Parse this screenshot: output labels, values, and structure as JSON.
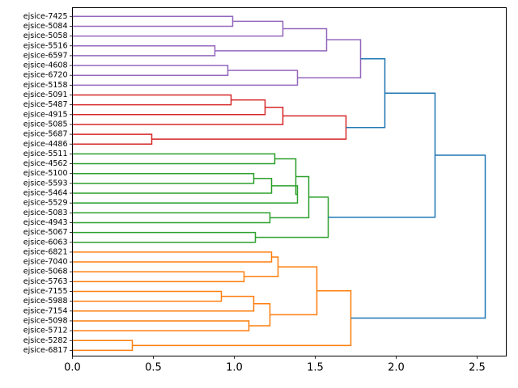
{
  "chart_data": {
    "type": "dendrogram",
    "orientation": "right",
    "title": "",
    "xlabel": "",
    "ylabel": "",
    "xlim": [
      0,
      2.68
    ],
    "xticks": [
      0.0,
      0.5,
      1.0,
      1.5,
      2.0,
      2.5
    ],
    "xtick_labels": [
      "0.0",
      "0.5",
      "1.0",
      "1.5",
      "2.0",
      "2.5"
    ],
    "colors": {
      "C0": "#1f77b4",
      "C1": "#ff7f0e",
      "C2": "#2ca02c",
      "C3": "#d62728",
      "C4": "#9467bd"
    },
    "leaves": [
      "ejsice-7425",
      "ejsice-5084",
      "ejsice-5058",
      "ejsice-5516",
      "ejsice-6597",
      "ejsice-4608",
      "ejsice-6720",
      "ejsice-5158",
      "ejsice-5091",
      "ejsice-5487",
      "ejsice-4915",
      "ejsice-5085",
      "ejsice-5687",
      "ejsice-4486",
      "ejsice-5511",
      "ejsice-4562",
      "ejsice-5100",
      "ejsice-5593",
      "ejsice-5464",
      "ejsice-5529",
      "ejsice-5083",
      "ejsice-4943",
      "ejsice-5067",
      "ejsice-6063",
      "ejsice-6821",
      "ejsice-7040",
      "ejsice-5068",
      "ejsice-5763",
      "ejsice-7155",
      "ejsice-5988",
      "ejsice-7154",
      "ejsice-5098",
      "ejsice-5712",
      "ejsice-5282",
      "ejsice-6817"
    ],
    "merges": [
      {
        "id": "M1",
        "a": "L0",
        "b": "L1",
        "height": 0.99,
        "color": "C4"
      },
      {
        "id": "M2",
        "a": "M1",
        "b": "L2",
        "height": 1.3,
        "color": "C4"
      },
      {
        "id": "M3",
        "a": "L3",
        "b": "L4",
        "height": 0.88,
        "color": "C4"
      },
      {
        "id": "M4",
        "a": "M2",
        "b": "M3",
        "height": 1.57,
        "color": "C4"
      },
      {
        "id": "M5",
        "a": "L5",
        "b": "L6",
        "height": 0.96,
        "color": "C4"
      },
      {
        "id": "M6",
        "a": "M5",
        "b": "L7",
        "height": 1.39,
        "color": "C4"
      },
      {
        "id": "M7",
        "a": "M4",
        "b": "M6",
        "height": 1.78,
        "color": "C4"
      },
      {
        "id": "M8",
        "a": "L8",
        "b": "L9",
        "height": 0.98,
        "color": "C3"
      },
      {
        "id": "M9",
        "a": "M8",
        "b": "L10",
        "height": 1.19,
        "color": "C3"
      },
      {
        "id": "M10",
        "a": "M9",
        "b": "L11",
        "height": 1.3,
        "color": "C3"
      },
      {
        "id": "M11",
        "a": "L12",
        "b": "L13",
        "height": 0.49,
        "color": "C3"
      },
      {
        "id": "M12",
        "a": "M10",
        "b": "M11",
        "height": 1.69,
        "color": "C3"
      },
      {
        "id": "M13",
        "a": "M7",
        "b": "M12",
        "height": 1.93,
        "color": "C0"
      },
      {
        "id": "M14",
        "a": "L14",
        "b": "L15",
        "height": 1.25,
        "color": "C2"
      },
      {
        "id": "M15",
        "a": "L16",
        "b": "L17",
        "height": 1.12,
        "color": "C2"
      },
      {
        "id": "M16",
        "a": "M15",
        "b": "L18",
        "height": 1.23,
        "color": "C2"
      },
      {
        "id": "M17",
        "a": "M16",
        "b": "L19",
        "height": 1.39,
        "color": "C2"
      },
      {
        "id": "M18",
        "a": "M14",
        "b": "M17",
        "height": 1.38,
        "color": "C2"
      },
      {
        "id": "M19",
        "a": "L20",
        "b": "L21",
        "height": 1.22,
        "color": "C2"
      },
      {
        "id": "M20",
        "a": "M18",
        "b": "M19",
        "height": 1.46,
        "color": "C2"
      },
      {
        "id": "M21",
        "a": "L22",
        "b": "L23",
        "height": 1.13,
        "color": "C2"
      },
      {
        "id": "M22",
        "a": "M20",
        "b": "M21",
        "height": 1.58,
        "color": "C2"
      },
      {
        "id": "M23",
        "a": "M13",
        "b": "M22",
        "height": 2.24,
        "color": "C0"
      },
      {
        "id": "M24",
        "a": "L24",
        "b": "L25",
        "height": 1.23,
        "color": "C1"
      },
      {
        "id": "M25",
        "a": "L26",
        "b": "L27",
        "height": 1.06,
        "color": "C1"
      },
      {
        "id": "M26",
        "a": "M24",
        "b": "M25",
        "height": 1.27,
        "color": "C1"
      },
      {
        "id": "M27",
        "a": "L28",
        "b": "L29",
        "height": 0.92,
        "color": "C1"
      },
      {
        "id": "M28",
        "a": "M27",
        "b": "L30",
        "height": 1.12,
        "color": "C1"
      },
      {
        "id": "M29",
        "a": "L31",
        "b": "L32",
        "height": 1.09,
        "color": "C1"
      },
      {
        "id": "M30",
        "a": "M28",
        "b": "M29",
        "height": 1.22,
        "color": "C1"
      },
      {
        "id": "M31",
        "a": "M26",
        "b": "M30",
        "height": 1.51,
        "color": "C1"
      },
      {
        "id": "M32",
        "a": "L33",
        "b": "L34",
        "height": 0.37,
        "color": "C1"
      },
      {
        "id": "M33",
        "a": "M31",
        "b": "M32",
        "height": 1.72,
        "color": "C1"
      },
      {
        "id": "M34",
        "a": "M23",
        "b": "M33",
        "height": 2.55,
        "color": "C0"
      }
    ]
  }
}
